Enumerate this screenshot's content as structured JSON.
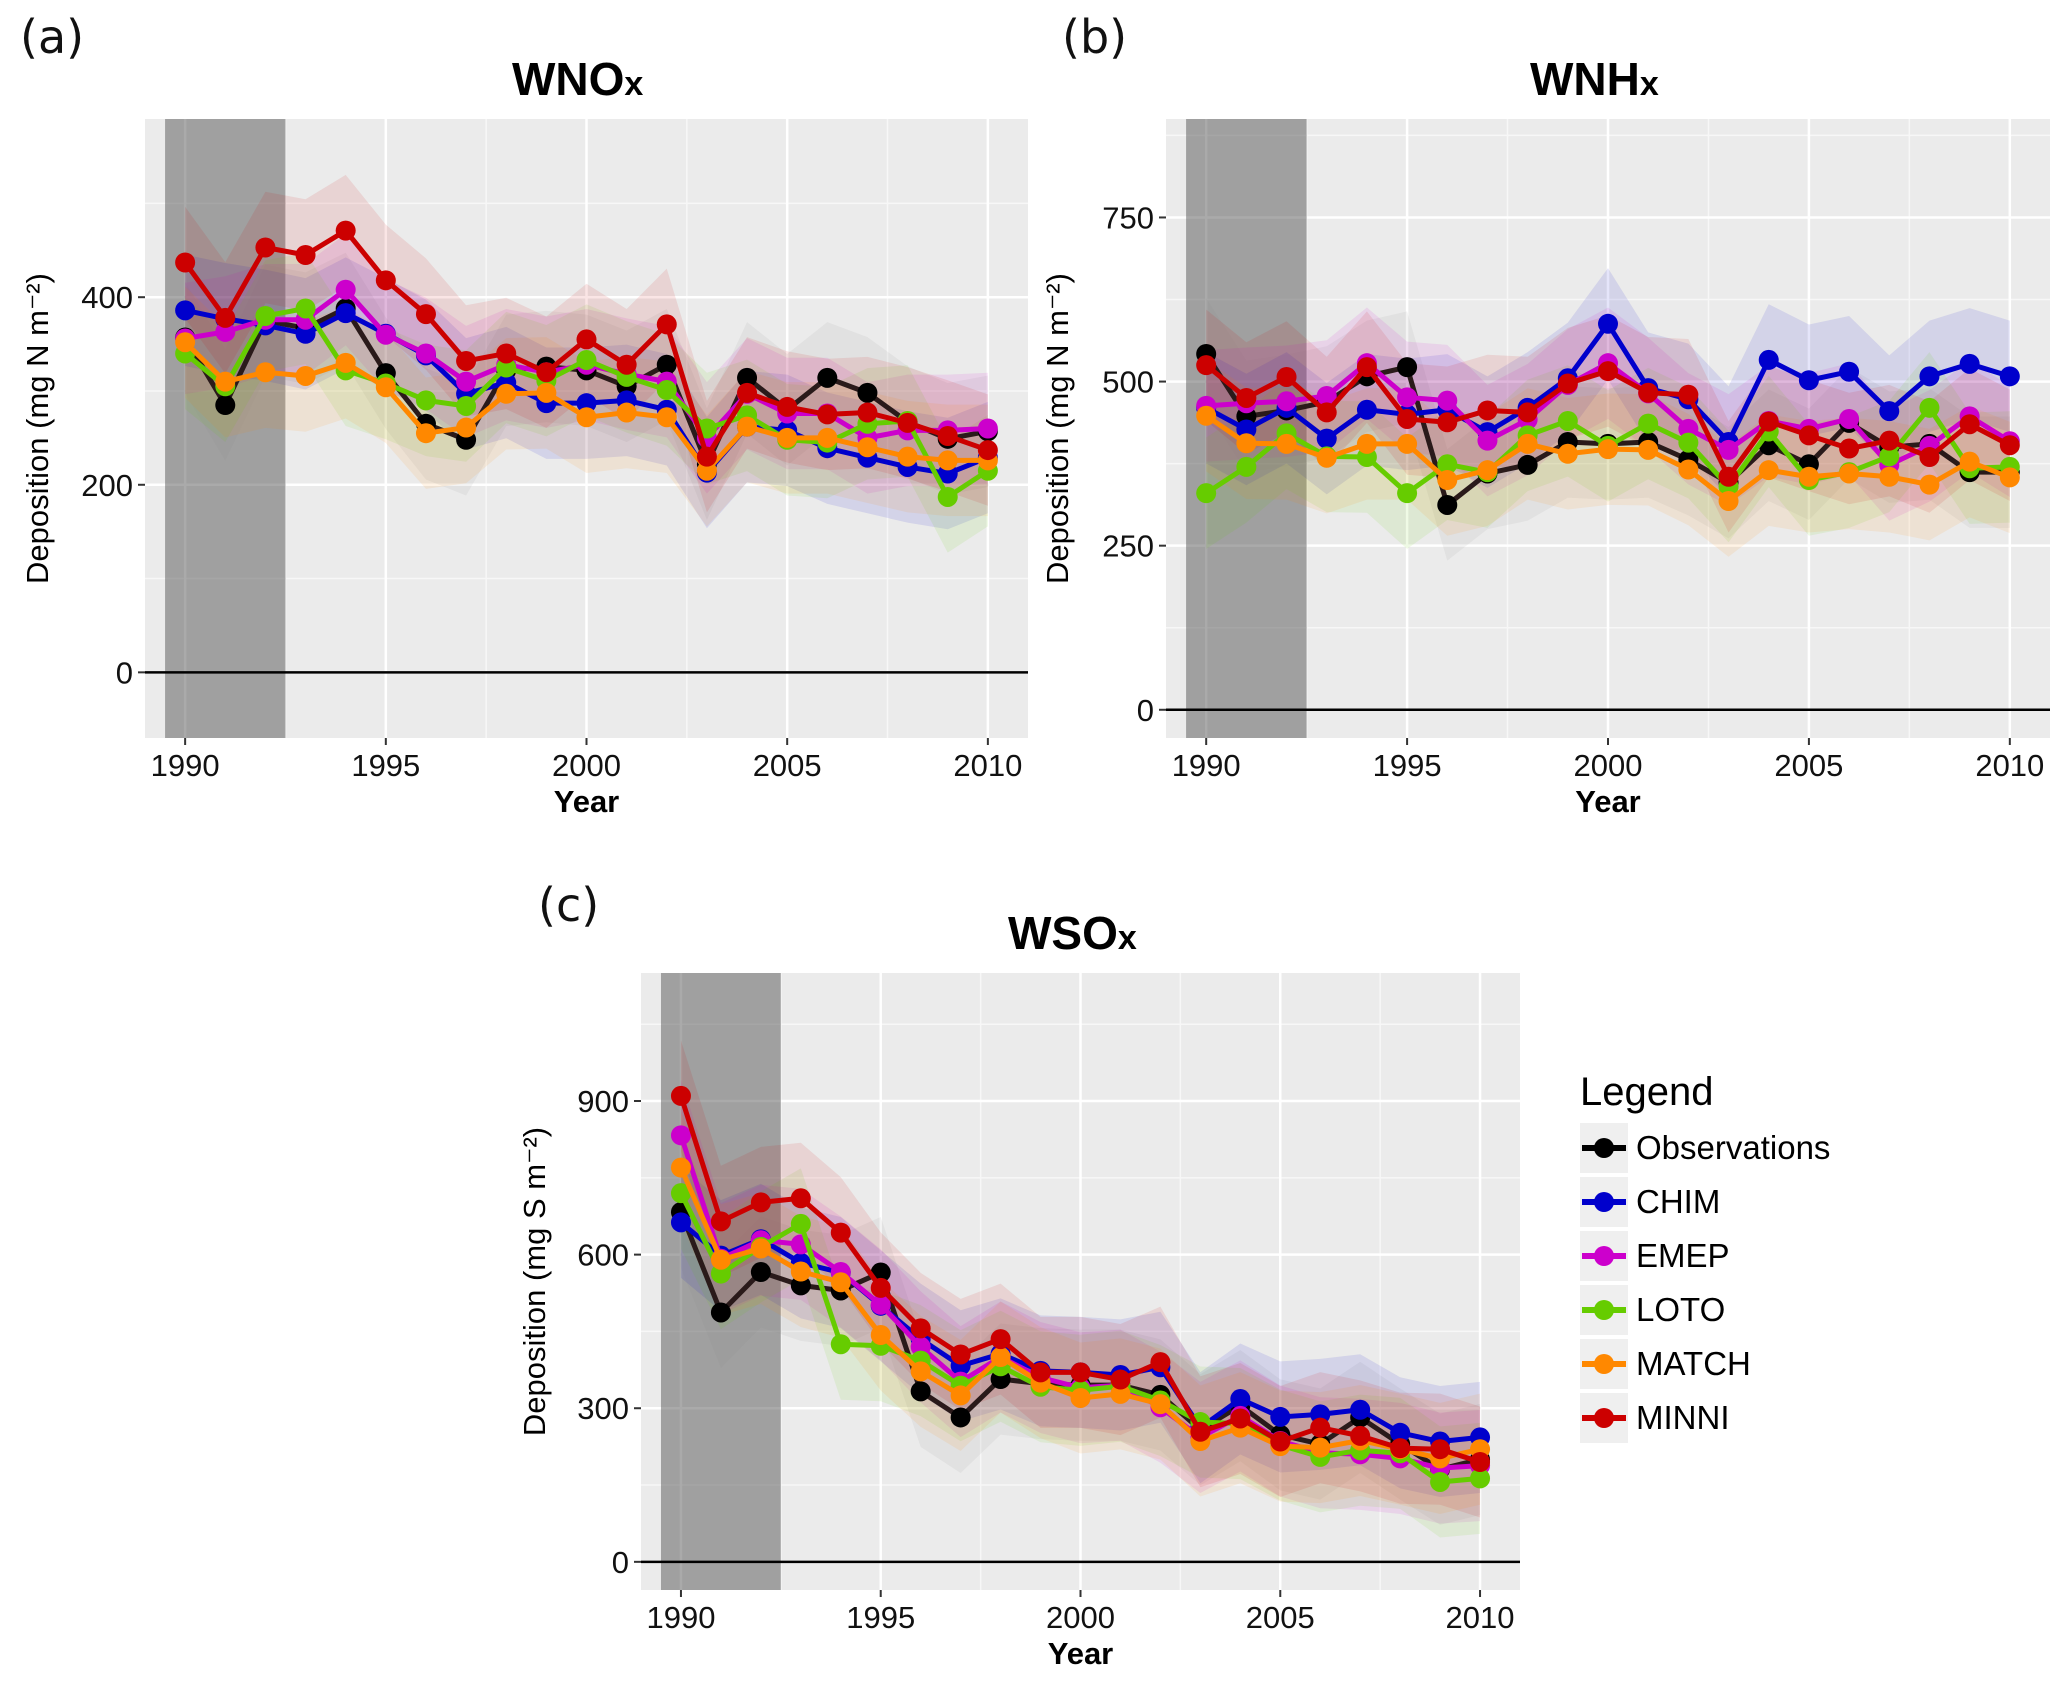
{
  "legend": {
    "title": "Legend",
    "items": [
      {
        "name": "Observations",
        "color": "#000000"
      },
      {
        "name": "CHIM",
        "color": "#0000cc"
      },
      {
        "name": "EMEP",
        "color": "#cc00cc"
      },
      {
        "name": "LOTO",
        "color": "#66cc00"
      },
      {
        "name": "MATCH",
        "color": "#ff8800"
      },
      {
        "name": "MINNI",
        "color": "#cc0000"
      }
    ]
  },
  "chart_data": [
    {
      "panel_label": "(a)",
      "type": "line",
      "title": "WNO",
      "title_sub": "x",
      "xlabel": "Year",
      "ylabel": "Deposition (mg N m⁻²)",
      "xlim": [
        1989,
        2011
      ],
      "ylim": [
        -70,
        590
      ],
      "xticks": [
        1990,
        1995,
        2000,
        2005,
        2010
      ],
      "yticks": [
        0,
        200,
        400
      ],
      "grid": true,
      "shaded_period": [
        1989.5,
        1992.5
      ],
      "x": [
        1990,
        1991,
        1992,
        1993,
        1994,
        1995,
        1996,
        1997,
        1998,
        1999,
        2000,
        2001,
        2002,
        2003,
        2004,
        2005,
        2006,
        2007,
        2008,
        2009,
        2010
      ],
      "series": [
        {
          "name": "Observations",
          "values": [
            357,
            285,
            375,
            367,
            388,
            319,
            265,
            248,
            322,
            326,
            322,
            305,
            328,
            222,
            314,
            280,
            314,
            298,
            267,
            249,
            257
          ]
        },
        {
          "name": "CHIM",
          "values": [
            386,
            377,
            370,
            361,
            383,
            361,
            338,
            297,
            309,
            287,
            287,
            290,
            280,
            213,
            262,
            258,
            239,
            229,
            219,
            212,
            229
          ]
        },
        {
          "name": "EMEP",
          "values": [
            356,
            363,
            376,
            376,
            408,
            360,
            340,
            310,
            328,
            320,
            328,
            318,
            310,
            250,
            297,
            276,
            276,
            250,
            258,
            258,
            260
          ]
        },
        {
          "name": "LOTO",
          "values": [
            340,
            305,
            380,
            388,
            322,
            308,
            290,
            284,
            325,
            311,
            333,
            315,
            301,
            260,
            274,
            248,
            245,
            265,
            268,
            187,
            215
          ]
        },
        {
          "name": "MATCH",
          "values": [
            352,
            310,
            320,
            316,
            330,
            304,
            255,
            261,
            297,
            298,
            272,
            277,
            272,
            215,
            262,
            250,
            250,
            240,
            230,
            226,
            226
          ]
        },
        {
          "name": "MINNI",
          "values": [
            437,
            378,
            453,
            445,
            471,
            418,
            382,
            332,
            340,
            320,
            355,
            328,
            371,
            230,
            298,
            283,
            275,
            277,
            266,
            252,
            237
          ]
        }
      ]
    },
    {
      "panel_label": "(b)",
      "type": "line",
      "title": "WNH",
      "title_sub": "x",
      "xlabel": "Year",
      "ylabel": "Deposition (mg N m⁻²)",
      "xlim": [
        1989,
        2011
      ],
      "ylim": [
        -43,
        900
      ],
      "xticks": [
        1990,
        1995,
        2000,
        2005,
        2010
      ],
      "yticks": [
        0,
        250,
        500,
        750
      ],
      "grid": true,
      "shaded_period": [
        1989.5,
        1992.5
      ],
      "x": [
        1990,
        1991,
        1992,
        1993,
        1994,
        1995,
        1996,
        1997,
        1998,
        1999,
        2000,
        2001,
        2002,
        2003,
        2004,
        2005,
        2006,
        2007,
        2008,
        2009,
        2010
      ],
      "series": [
        {
          "name": "Observations",
          "values": [
            542,
            447,
            456,
            469,
            508,
            522,
            312,
            360,
            373,
            408,
            405,
            408,
            381,
            346,
            403,
            374,
            437,
            400,
            405,
            362,
            362
          ]
        },
        {
          "name": "CHIM",
          "values": [
            460,
            427,
            460,
            413,
            457,
            450,
            457,
            423,
            460,
            505,
            588,
            490,
            473,
            408,
            533,
            502,
            515,
            455,
            508,
            527,
            508
          ]
        },
        {
          "name": "EMEP",
          "values": [
            463,
            467,
            470,
            478,
            528,
            476,
            471,
            410,
            442,
            495,
            528,
            482,
            428,
            396,
            440,
            428,
            443,
            373,
            402,
            447,
            409
          ]
        },
        {
          "name": "LOTO",
          "values": [
            330,
            370,
            421,
            386,
            385,
            330,
            374,
            362,
            418,
            440,
            402,
            436,
            407,
            340,
            424,
            350,
            362,
            386,
            460,
            368,
            370
          ]
        },
        {
          "name": "MATCH",
          "values": [
            448,
            406,
            405,
            384,
            405,
            405,
            350,
            365,
            405,
            390,
            397,
            396,
            366,
            318,
            365,
            355,
            360,
            355,
            343,
            378,
            354
          ]
        },
        {
          "name": "MINNI",
          "values": [
            525,
            475,
            507,
            453,
            522,
            443,
            438,
            456,
            453,
            497,
            516,
            483,
            480,
            355,
            439,
            418,
            398,
            410,
            385,
            435,
            403
          ]
        }
      ]
    },
    {
      "panel_label": "(c)",
      "type": "line",
      "title": "WSO",
      "title_sub": "x",
      "xlabel": "Year",
      "ylabel": "Deposition (mg S m⁻²)",
      "xlim": [
        1989,
        2011
      ],
      "ylim": [
        -55,
        1150
      ],
      "xticks": [
        1990,
        1995,
        2000,
        2005,
        2010
      ],
      "yticks": [
        0,
        300,
        600,
        900
      ],
      "grid": true,
      "shaded_period": [
        1989.5,
        1992.5
      ],
      "x": [
        1990,
        1991,
        1992,
        1993,
        1994,
        1995,
        1996,
        1997,
        1998,
        1999,
        2000,
        2001,
        2002,
        2003,
        2004,
        2005,
        2006,
        2007,
        2008,
        2009,
        2010
      ],
      "series": [
        {
          "name": "Observations",
          "values": [
            683,
            487,
            566,
            540,
            530,
            565,
            333,
            282,
            357,
            348,
            345,
            345,
            326,
            258,
            305,
            248,
            230,
            282,
            230,
            181,
            200
          ]
        },
        {
          "name": "CHIM",
          "values": [
            663,
            598,
            630,
            584,
            565,
            500,
            435,
            383,
            406,
            373,
            370,
            365,
            380,
            262,
            318,
            283,
            288,
            297,
            252,
            235,
            243
          ]
        },
        {
          "name": "EMEP",
          "values": [
            833,
            592,
            628,
            620,
            566,
            502,
            420,
            352,
            400,
            360,
            340,
            345,
            302,
            243,
            285,
            236,
            213,
            210,
            202,
            183,
            188
          ]
        },
        {
          "name": "LOTO",
          "values": [
            720,
            563,
            615,
            660,
            425,
            422,
            393,
            344,
            382,
            342,
            335,
            343,
            315,
            273,
            270,
            228,
            205,
            218,
            212,
            156,
            163
          ]
        },
        {
          "name": "MATCH",
          "values": [
            770,
            590,
            612,
            567,
            546,
            443,
            372,
            325,
            400,
            350,
            320,
            328,
            308,
            236,
            262,
            226,
            223,
            237,
            220,
            202,
            220
          ]
        },
        {
          "name": "MINNI",
          "values": [
            910,
            665,
            702,
            710,
            643,
            535,
            456,
            405,
            435,
            370,
            370,
            356,
            390,
            254,
            280,
            235,
            262,
            246,
            222,
            220,
            195
          ]
        }
      ]
    }
  ]
}
